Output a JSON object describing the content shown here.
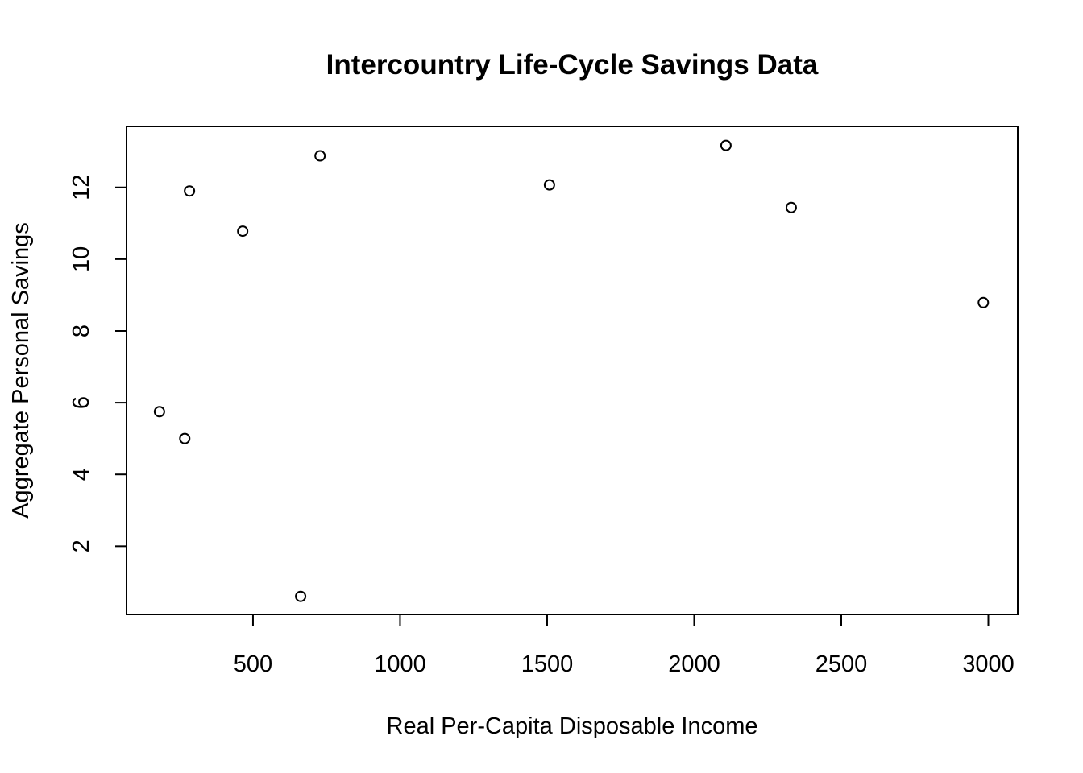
{
  "chart_data": {
    "type": "scatter",
    "title": "Intercountry Life-Cycle Savings Data",
    "xlabel": "Real Per-Capita Disposable Income",
    "ylabel": "Aggregate Personal Savings",
    "xlim": [
      70,
      3100
    ],
    "ylim": [
      0.1,
      13.7
    ],
    "x_ticks": [
      500,
      1000,
      1500,
      2000,
      2500,
      3000
    ],
    "y_ticks": [
      2,
      4,
      6,
      8,
      10,
      12
    ],
    "grid": false,
    "legend": "none",
    "marker": "open-circle",
    "points": [
      {
        "x": 182,
        "y": 5.75
      },
      {
        "x": 268,
        "y": 5.0
      },
      {
        "x": 284,
        "y": 11.9
      },
      {
        "x": 465,
        "y": 10.78
      },
      {
        "x": 662,
        "y": 0.6
      },
      {
        "x": 728,
        "y": 12.88
      },
      {
        "x": 1508,
        "y": 12.07
      },
      {
        "x": 2108,
        "y": 13.17
      },
      {
        "x": 2330,
        "y": 11.44
      },
      {
        "x": 2983,
        "y": 8.79
      }
    ]
  }
}
